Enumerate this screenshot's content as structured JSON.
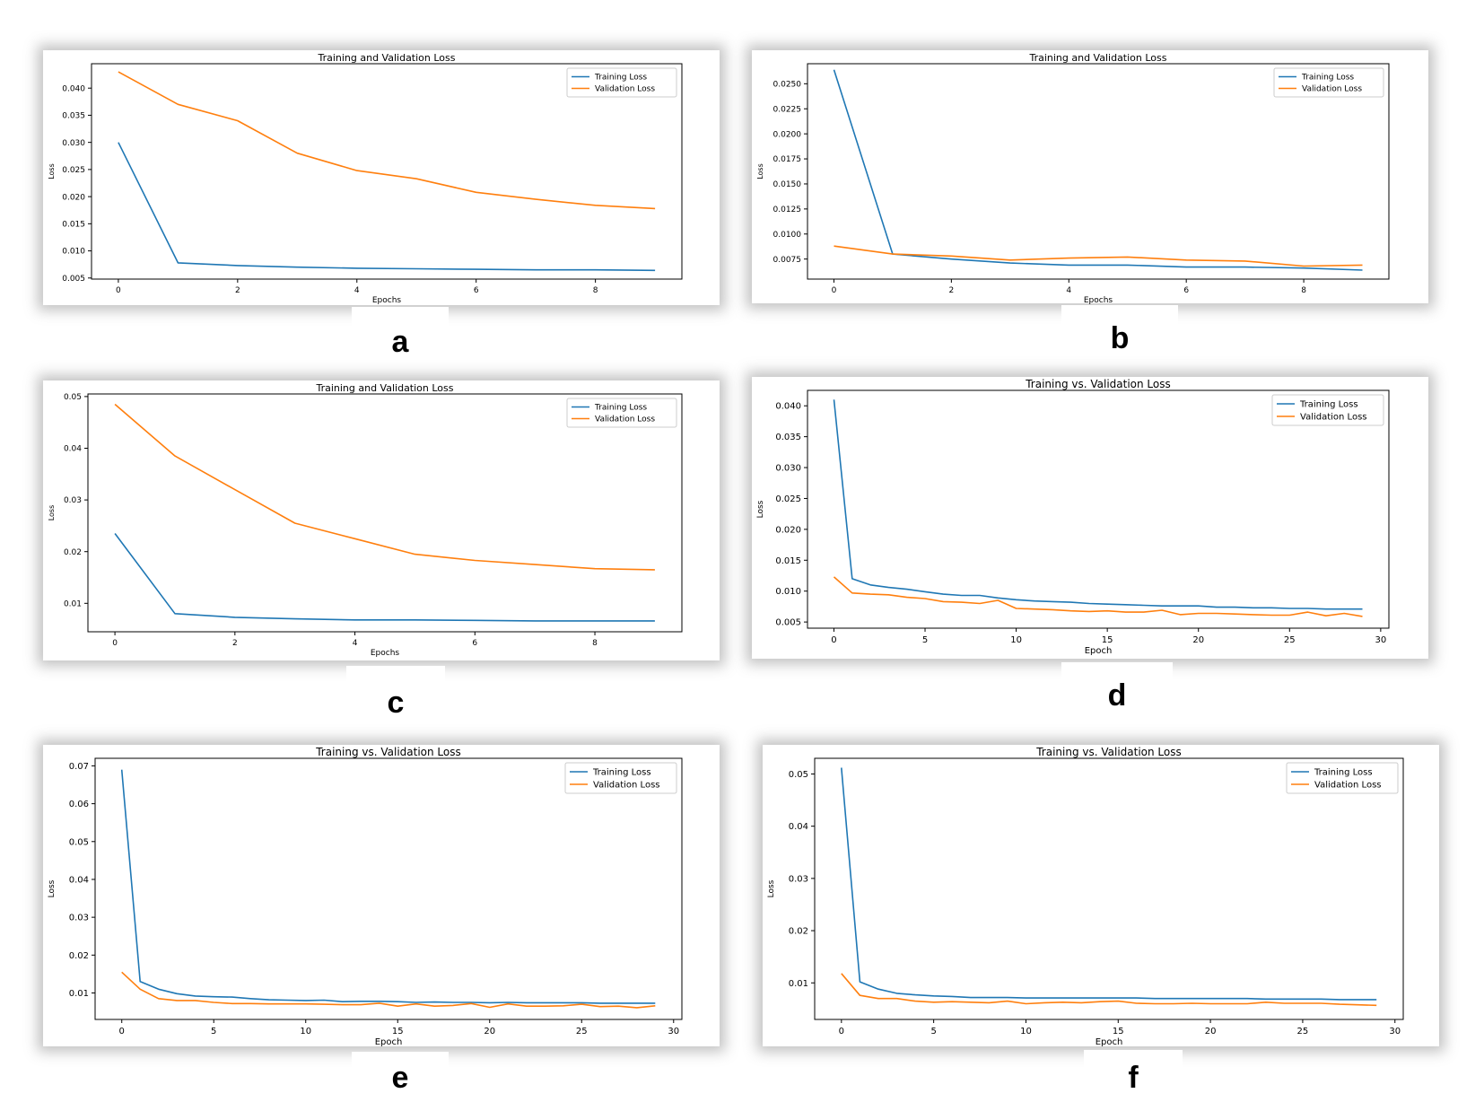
{
  "panel_labels": [
    "a",
    "b",
    "c",
    "d",
    "e",
    "f"
  ],
  "colors": {
    "training": "#1f77b4",
    "validation": "#ff7f0e",
    "frame": "#000000"
  },
  "chart_data": [
    {
      "type": "line",
      "title": "Training and Validation Loss",
      "xlabel": "Epochs",
      "ylabel": "Loss",
      "xlim": [
        -0.45,
        9.45
      ],
      "ylim": [
        0.0048,
        0.0445
      ],
      "xticks": [
        0,
        2,
        4,
        6,
        8
      ],
      "yticks": [
        0.005,
        0.01,
        0.015,
        0.02,
        0.025,
        0.03,
        0.035,
        0.04
      ],
      "ytick_labels": [
        "0.005",
        "0.010",
        "0.015",
        "0.020",
        "0.025",
        "0.030",
        "0.035",
        "0.040"
      ],
      "grid": false,
      "legend": "top-right",
      "x": [
        0,
        1,
        2,
        3,
        4,
        5,
        6,
        7,
        8,
        9
      ],
      "series": [
        {
          "name": "Training Loss",
          "values": [
            0.03,
            0.0078,
            0.0073,
            0.007,
            0.0068,
            0.0067,
            0.0066,
            0.0065,
            0.0065,
            0.0064
          ]
        },
        {
          "name": "Validation Loss",
          "values": [
            0.043,
            0.037,
            0.034,
            0.028,
            0.0248,
            0.0233,
            0.0208,
            0.0195,
            0.0184,
            0.0178
          ]
        }
      ]
    },
    {
      "type": "line",
      "title": "Training and Validation Loss",
      "xlabel": "Epochs",
      "ylabel": "Loss",
      "xlim": [
        -0.45,
        9.45
      ],
      "ylim": [
        0.0055,
        0.027
      ],
      "xticks": [
        0,
        2,
        4,
        6,
        8
      ],
      "yticks": [
        0.0075,
        0.01,
        0.0125,
        0.015,
        0.0175,
        0.02,
        0.0225,
        0.025
      ],
      "ytick_labels": [
        "0.0075",
        "0.0100",
        "0.0125",
        "0.0150",
        "0.0175",
        "0.0200",
        "0.0225",
        "0.0250"
      ],
      "grid": false,
      "legend": "top-right",
      "x": [
        0,
        1,
        2,
        3,
        4,
        5,
        6,
        7,
        8,
        9
      ],
      "series": [
        {
          "name": "Training Loss",
          "values": [
            0.0264,
            0.008,
            0.0075,
            0.0071,
            0.0069,
            0.0069,
            0.0067,
            0.0067,
            0.0066,
            0.0064
          ]
        },
        {
          "name": "Validation Loss",
          "values": [
            0.0088,
            0.008,
            0.0078,
            0.0074,
            0.0076,
            0.0077,
            0.0074,
            0.0073,
            0.0068,
            0.0069
          ]
        }
      ]
    },
    {
      "type": "line",
      "title": "Training and Validation Loss",
      "xlabel": "Epochs",
      "ylabel": "Loss",
      "xlim": [
        -0.45,
        9.45
      ],
      "ylim": [
        0.0045,
        0.0505
      ],
      "xticks": [
        0,
        2,
        4,
        6,
        8
      ],
      "yticks": [
        0.01,
        0.02,
        0.03,
        0.04,
        0.05
      ],
      "ytick_labels": [
        "0.01",
        "0.02",
        "0.03",
        "0.04",
        "0.05"
      ],
      "grid": false,
      "legend": "top-right",
      "x": [
        0,
        1,
        2,
        3,
        4,
        5,
        6,
        7,
        8,
        9
      ],
      "series": [
        {
          "name": "Training Loss",
          "values": [
            0.0235,
            0.008,
            0.0073,
            0.007,
            0.0068,
            0.0068,
            0.0067,
            0.0066,
            0.0066,
            0.0066
          ]
        },
        {
          "name": "Validation Loss",
          "values": [
            0.0485,
            0.0385,
            0.032,
            0.0255,
            0.0225,
            0.0195,
            0.0183,
            0.0175,
            0.0167,
            0.0165
          ]
        }
      ]
    },
    {
      "type": "line",
      "title": "Training vs. Validation Loss",
      "xlabel": "Epoch",
      "ylabel": "Loss",
      "xlim": [
        -1.45,
        30.45
      ],
      "ylim": [
        0.004,
        0.0425
      ],
      "xticks": [
        0,
        5,
        10,
        15,
        20,
        25,
        30
      ],
      "yticks": [
        0.005,
        0.01,
        0.015,
        0.02,
        0.025,
        0.03,
        0.035,
        0.04
      ],
      "ytick_labels": [
        "0.005",
        "0.010",
        "0.015",
        "0.020",
        "0.025",
        "0.030",
        "0.035",
        "0.040"
      ],
      "grid": false,
      "legend": "top-right",
      "x": [
        0,
        1,
        2,
        3,
        4,
        5,
        6,
        7,
        8,
        9,
        10,
        11,
        12,
        13,
        14,
        15,
        16,
        17,
        18,
        19,
        20,
        21,
        22,
        23,
        24,
        25,
        26,
        27,
        28,
        29
      ],
      "series": [
        {
          "name": "Training Loss",
          "values": [
            0.041,
            0.012,
            0.011,
            0.0106,
            0.0103,
            0.0099,
            0.0095,
            0.0093,
            0.0093,
            0.0089,
            0.0086,
            0.0084,
            0.0083,
            0.0082,
            0.008,
            0.0079,
            0.0078,
            0.0077,
            0.0076,
            0.0076,
            0.0076,
            0.0074,
            0.0074,
            0.0073,
            0.0073,
            0.0072,
            0.0072,
            0.0071,
            0.0071,
            0.0071
          ]
        },
        {
          "name": "Validation Loss",
          "values": [
            0.0123,
            0.0097,
            0.0095,
            0.0094,
            0.009,
            0.0088,
            0.0083,
            0.0082,
            0.008,
            0.0085,
            0.0072,
            0.0071,
            0.007,
            0.0068,
            0.0067,
            0.0068,
            0.0066,
            0.0066,
            0.0069,
            0.0062,
            0.0064,
            0.0064,
            0.0063,
            0.0062,
            0.0061,
            0.0061,
            0.0066,
            0.006,
            0.0064,
            0.0059
          ]
        }
      ]
    },
    {
      "type": "line",
      "title": "Training vs. Validation Loss",
      "xlabel": "Epoch",
      "ylabel": "Loss",
      "xlim": [
        -1.45,
        30.45
      ],
      "ylim": [
        0.003,
        0.072
      ],
      "xticks": [
        0,
        5,
        10,
        15,
        20,
        25,
        30
      ],
      "yticks": [
        0.01,
        0.02,
        0.03,
        0.04,
        0.05,
        0.06,
        0.07
      ],
      "ytick_labels": [
        "0.01",
        "0.02",
        "0.03",
        "0.04",
        "0.05",
        "0.06",
        "0.07"
      ],
      "grid": false,
      "legend": "top-right",
      "x": [
        0,
        1,
        2,
        3,
        4,
        5,
        6,
        7,
        8,
        9,
        10,
        11,
        12,
        13,
        14,
        15,
        16,
        17,
        18,
        19,
        20,
        21,
        22,
        23,
        24,
        25,
        26,
        27,
        28,
        29
      ],
      "series": [
        {
          "name": "Training Loss",
          "values": [
            0.069,
            0.013,
            0.011,
            0.0098,
            0.0092,
            0.009,
            0.0089,
            0.0085,
            0.0082,
            0.0081,
            0.008,
            0.0081,
            0.0077,
            0.0078,
            0.0078,
            0.0077,
            0.0075,
            0.0076,
            0.0075,
            0.0075,
            0.0074,
            0.0075,
            0.0074,
            0.0074,
            0.0074,
            0.0074,
            0.0073,
            0.0073,
            0.0073,
            0.0073
          ]
        },
        {
          "name": "Validation Loss",
          "values": [
            0.0155,
            0.011,
            0.0085,
            0.008,
            0.008,
            0.0075,
            0.0072,
            0.0072,
            0.0071,
            0.0071,
            0.0071,
            0.007,
            0.0069,
            0.0069,
            0.0073,
            0.0065,
            0.0071,
            0.0065,
            0.0067,
            0.0072,
            0.0062,
            0.0071,
            0.0065,
            0.0065,
            0.0066,
            0.007,
            0.0064,
            0.0065,
            0.0061,
            0.0066
          ]
        }
      ]
    },
    {
      "type": "line",
      "title": "Training vs. Validation Loss",
      "xlabel": "Epoch",
      "ylabel": "Loss",
      "xlim": [
        -1.45,
        30.45
      ],
      "ylim": [
        0.003,
        0.053
      ],
      "xticks": [
        0,
        5,
        10,
        15,
        20,
        25,
        30
      ],
      "yticks": [
        0.01,
        0.02,
        0.03,
        0.04,
        0.05
      ],
      "ytick_labels": [
        "0.01",
        "0.02",
        "0.03",
        "0.04",
        "0.05"
      ],
      "grid": false,
      "legend": "top-right",
      "x": [
        0,
        1,
        2,
        3,
        4,
        5,
        6,
        7,
        8,
        9,
        10,
        11,
        12,
        13,
        14,
        15,
        16,
        17,
        18,
        19,
        20,
        21,
        22,
        23,
        24,
        25,
        26,
        27,
        28,
        29
      ],
      "series": [
        {
          "name": "Training Loss",
          "values": [
            0.0512,
            0.0102,
            0.0088,
            0.008,
            0.0077,
            0.0075,
            0.0074,
            0.0072,
            0.0072,
            0.0072,
            0.0071,
            0.0071,
            0.0071,
            0.0071,
            0.0071,
            0.0071,
            0.0071,
            0.007,
            0.007,
            0.007,
            0.007,
            0.007,
            0.007,
            0.0069,
            0.0069,
            0.0069,
            0.0069,
            0.0068,
            0.0068,
            0.0068
          ]
        },
        {
          "name": "Validation Loss",
          "values": [
            0.0118,
            0.0076,
            0.007,
            0.007,
            0.0065,
            0.0063,
            0.0064,
            0.0063,
            0.0062,
            0.0065,
            0.006,
            0.0062,
            0.0063,
            0.0062,
            0.0064,
            0.0065,
            0.0061,
            0.006,
            0.006,
            0.0061,
            0.006,
            0.006,
            0.006,
            0.0063,
            0.0061,
            0.0061,
            0.0061,
            0.0059,
            0.0058,
            0.0057
          ]
        }
      ]
    }
  ]
}
